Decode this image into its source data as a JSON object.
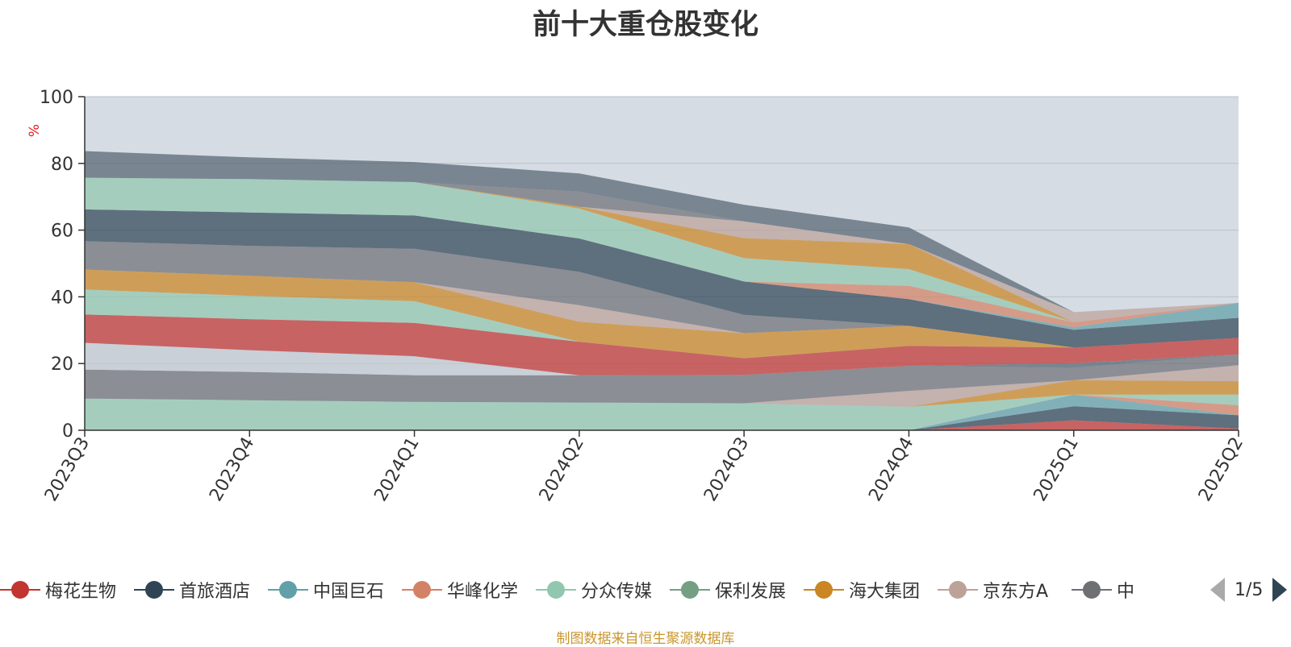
{
  "chart_data": {
    "type": "area",
    "stacked": true,
    "title": "前十大重仓股变化",
    "ylabel": "%",
    "ylim": [
      0,
      100
    ],
    "yticks": [
      0,
      20,
      40,
      60,
      80,
      100
    ],
    "categories": [
      "2023Q3",
      "2023Q4",
      "2024Q1",
      "2024Q2",
      "2024Q3",
      "2024Q4",
      "2025Q1",
      "2025Q2"
    ],
    "series": [
      {
        "name": "梅花生物",
        "color": "#c23531",
        "values": [
          0,
          0,
          0,
          0,
          0,
          0,
          3.0,
          0.5
        ]
      },
      {
        "name": "首旅酒店",
        "color": "#2f4554",
        "values": [
          0,
          0,
          0,
          0,
          0,
          0,
          4.2,
          4.0
        ]
      },
      {
        "name": "中国巨石",
        "color": "#61a0a8",
        "values": [
          0,
          0,
          0,
          0,
          0,
          0,
          3.5,
          0
        ]
      },
      {
        "name": "华峰化学",
        "color": "#d48265",
        "values": [
          0,
          0,
          0,
          0,
          0,
          0,
          0,
          3.0
        ]
      },
      {
        "name": "分众传媒",
        "color": "#91c7ae",
        "values": [
          9.5,
          9.0,
          8.5,
          8.3,
          8.0,
          7.0,
          0,
          3.2
        ]
      },
      {
        "name": "保利发展",
        "color": "#749f83",
        "values": [
          0,
          0,
          0,
          0,
          0,
          0,
          0,
          0
        ]
      },
      {
        "name": "海大集团",
        "color": "#ca8622",
        "values": [
          0,
          0,
          0,
          0,
          0,
          0,
          4.3,
          4.0
        ]
      },
      {
        "name": "京东方A",
        "color": "#bda29a",
        "values": [
          0,
          0,
          0,
          0,
          0.1,
          4.8,
          0,
          4.8
        ]
      },
      {
        "name": "中",
        "color": "#6e7074",
        "values": [
          8.7,
          8.5,
          8.0,
          8.2,
          8.5,
          7.5,
          3.7,
          3.2
        ]
      },
      {
        "name": "",
        "color": "#546570",
        "values": [
          0,
          0,
          0,
          0,
          0,
          0,
          1.4,
          0
        ]
      },
      {
        "name": "",
        "color": "#c4ccd3",
        "values": [
          8.0,
          6.5,
          5.7,
          0,
          0,
          0,
          0,
          0
        ]
      },
      {
        "name": "",
        "color": "#c23531",
        "values": [
          8.5,
          9.3,
          10.0,
          10.0,
          5.0,
          6.0,
          4.7,
          5.0
        ]
      },
      {
        "name": "",
        "color": "#91c7ae",
        "values": [
          7.5,
          7.0,
          6.5,
          0,
          0,
          0,
          0,
          0
        ]
      },
      {
        "name": "",
        "color": "#ca8622",
        "values": [
          6.0,
          6.0,
          5.7,
          6.0,
          7.5,
          6.0,
          0,
          0
        ]
      },
      {
        "name": "",
        "color": "#bda29a",
        "values": [
          0,
          0,
          0,
          5.0,
          0,
          0,
          0,
          0
        ]
      },
      {
        "name": "",
        "color": "#6e7074",
        "values": [
          8.5,
          9.0,
          10.0,
          10.0,
          5.5,
          0,
          0,
          0
        ]
      },
      {
        "name": "",
        "color": "#2f4554",
        "values": [
          9.5,
          10.0,
          10.0,
          10.0,
          10.0,
          8.0,
          5.3,
          6.0
        ]
      },
      {
        "name": "",
        "color": "#61a0a8",
        "values": [
          0,
          0,
          0,
          0,
          0,
          0,
          0.8,
          4.5
        ]
      },
      {
        "name": "",
        "color": "#d48265",
        "values": [
          0,
          0,
          0,
          0,
          0,
          4.0,
          1.5,
          0
        ]
      },
      {
        "name": "",
        "color": "#91c7ae",
        "values": [
          9.5,
          10.0,
          10.0,
          9.0,
          7.0,
          5.0,
          0,
          0
        ]
      },
      {
        "name": "",
        "color": "#ca8622",
        "values": [
          0,
          0,
          0,
          0.5,
          6.0,
          7.5,
          0,
          0
        ]
      },
      {
        "name": "",
        "color": "#bda29a",
        "values": [
          0,
          0,
          0,
          0,
          5.0,
          0,
          3.0,
          0
        ]
      },
      {
        "name": "",
        "color": "#6e7074",
        "values": [
          0,
          0,
          0,
          4.5,
          0,
          0,
          0,
          0
        ]
      },
      {
        "name": "",
        "color": "#546570",
        "values": [
          8.0,
          6.5,
          6.0,
          5.5,
          5.0,
          5.0,
          0,
          0
        ]
      }
    ]
  },
  "legend": {
    "page_indicator": "1/5"
  },
  "source_note": "制图数据来自恒生聚源数据库"
}
